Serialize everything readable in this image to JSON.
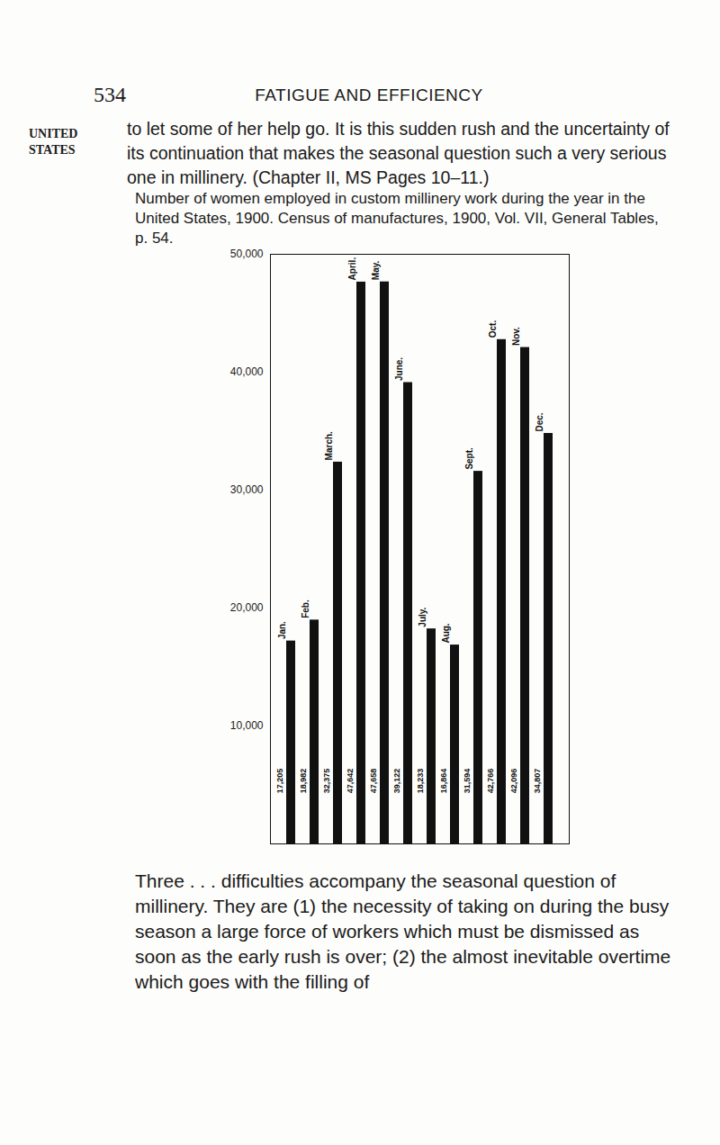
{
  "header": {
    "page_number": "534",
    "running_title": "FATIGUE AND EFFICIENCY"
  },
  "side_note": "UNITED STATES",
  "paragraph_top": "to let some of her help go. It is this sudden rush and the uncertainty of its continuation that makes the seasonal question such a very serious one in millinery. (Chapter II, MS Pages 10–11.)",
  "caption": "Number of women employed in custom millinery work during the year in the United States, 1900. Census of manufactures, 1900, Vol. VII, General Tables, p. 54.",
  "paragraph_bottom": "Three . . . difficulties accompany the seasonal question of millinery. They are (1) the necessity of taking on during the busy season a large force of workers which must be dismissed as soon as the early rush is over; (2) the almost inevitable overtime which goes with the filling of",
  "chart_data": {
    "type": "bar",
    "categories": [
      "Jan.",
      "Feb.",
      "March.",
      "April.",
      "May.",
      "June.",
      "July.",
      "Aug.",
      "Sept.",
      "Oct.",
      "Nov.",
      "Dec."
    ],
    "values": [
      17205,
      18982,
      32375,
      47642,
      47658,
      39122,
      18233,
      16864,
      31594,
      42766,
      42096,
      34807
    ],
    "value_labels": [
      "17,205",
      "18,982",
      "32,375",
      "47,642",
      "47,658",
      "39,122",
      "18,233",
      "16,864",
      "31,594",
      "42,766",
      "42,096",
      "34,807"
    ],
    "color": "#111111",
    "ylim": [
      0,
      50000
    ],
    "yticks": [
      {
        "value": 10000,
        "label": "10,000"
      },
      {
        "value": 20000,
        "label": "20,000"
      },
      {
        "value": 30000,
        "label": "30,000"
      },
      {
        "value": 40000,
        "label": "40,000"
      },
      {
        "value": 50000,
        "label": "50,000"
      }
    ],
    "data_labels": true,
    "grid": false
  }
}
